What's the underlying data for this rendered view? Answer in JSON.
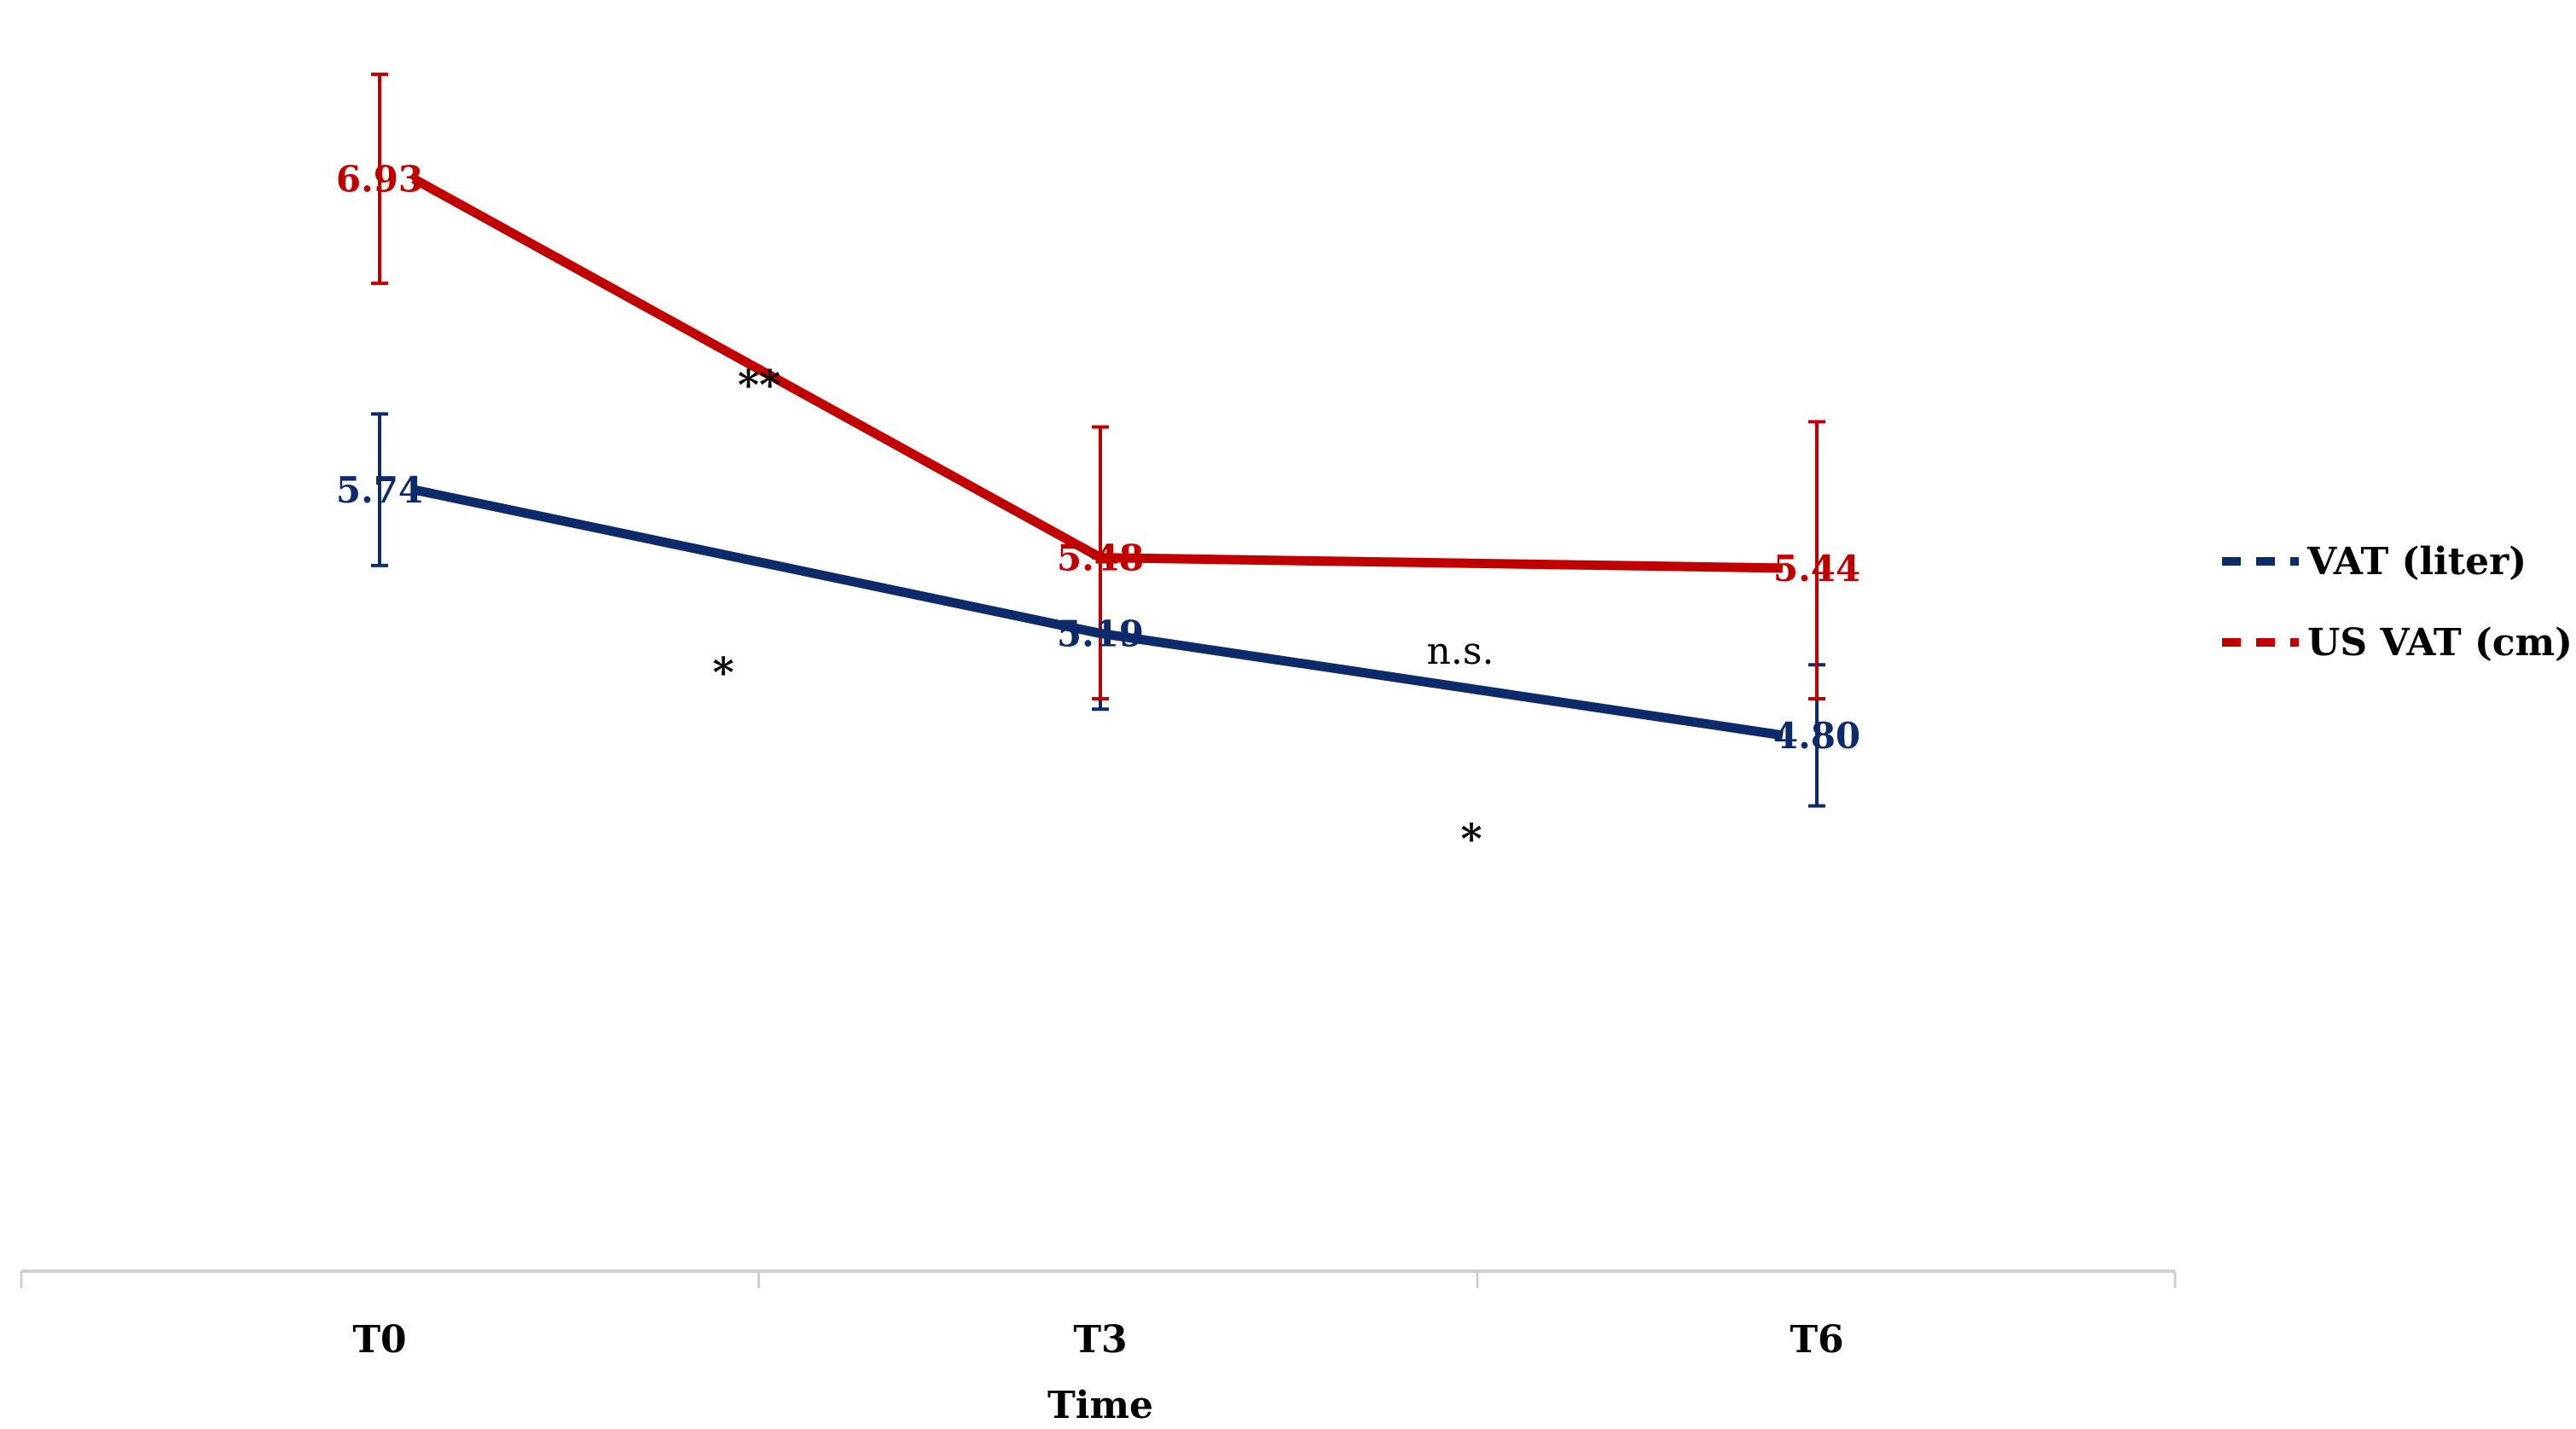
{
  "chart_data": {
    "type": "line",
    "title": "",
    "xlabel": "Time",
    "ylabel": "",
    "categories": [
      "T0",
      "T3",
      "T6"
    ],
    "ylim": [
      3.5,
      7.5
    ],
    "grid": false,
    "legend_position": "right",
    "series": [
      {
        "name": "VAT (liter)",
        "color": "#0d2a6b",
        "values": [
          5.74,
          5.19,
          4.8
        ],
        "labels": [
          "5.74",
          "5.19",
          "4.80"
        ],
        "error_low": [
          5.45,
          4.9,
          4.53
        ],
        "error_high": [
          6.03,
          5.48,
          5.07
        ]
      },
      {
        "name": "US VAT (cm)",
        "color": "#c00000",
        "values": [
          6.93,
          5.48,
          5.44
        ],
        "labels": [
          "6.93",
          "5.48",
          "5.44"
        ],
        "error_low": [
          6.53,
          4.94,
          4.94
        ],
        "error_high": [
          7.33,
          5.98,
          6.0
        ]
      }
    ],
    "annotations": [
      {
        "text": "**",
        "segment": [
          0,
          1
        ],
        "series": 1
      },
      {
        "text": "*",
        "segment": [
          0,
          1
        ],
        "series": 0
      },
      {
        "text": "n.s.",
        "segment": [
          1,
          2
        ],
        "series": 1
      },
      {
        "text": "*",
        "segment": [
          1,
          2
        ],
        "series": 0
      }
    ]
  }
}
